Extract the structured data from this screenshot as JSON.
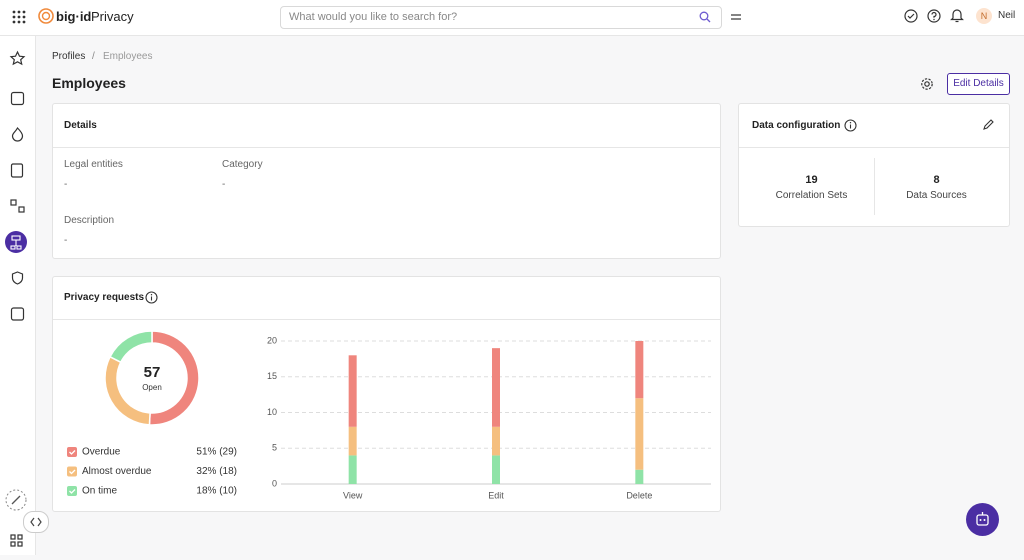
{
  "header": {
    "logo": "big·id",
    "app": "Privacy",
    "search_placeholder": "What would you like to search for?",
    "user_initial": "N",
    "user_name": "Neil"
  },
  "breadcrumb": [
    "Profiles",
    "/",
    "Employees"
  ],
  "title": "Employees",
  "edit_button": "Edit Details",
  "details": {
    "title": "Details",
    "fields": [
      {
        "label": "Legal entities",
        "value": "-"
      },
      {
        "label": "Category",
        "value": "-"
      },
      {
        "label": "Description",
        "value": "-"
      }
    ]
  },
  "data_configuration": {
    "title": "Data configuration",
    "items": [
      {
        "value": "19",
        "label": "Correlation Sets"
      },
      {
        "value": "8",
        "label": "Data Sources"
      }
    ]
  },
  "privacy_requests": {
    "title": "Privacy requests"
  },
  "chart_data": [
    {
      "type": "donut",
      "center_value": 57,
      "center_label": "Open",
      "categories": [
        "Overdue",
        "Almost overdue",
        "On time"
      ],
      "values": [
        29,
        18,
        10
      ],
      "value_labels": [
        "51% (29)",
        "32% (18)",
        "18% (10)"
      ],
      "colors": [
        "#ef857d",
        "#f5bf7f",
        "#8fe3a7"
      ]
    },
    {
      "type": "bar",
      "stacked": true,
      "categories": [
        "View",
        "Edit",
        "Delete"
      ],
      "series": [
        {
          "color": "#8fe3a7",
          "values": [
            4,
            4,
            2
          ]
        },
        {
          "color": "#f5bf7f",
          "values": [
            4,
            4,
            10
          ]
        },
        {
          "color": "#ef857d",
          "values": [
            10,
            11,
            8
          ]
        }
      ],
      "ylim": [
        0,
        20
      ],
      "yticks": [
        0,
        5,
        10,
        15,
        20
      ],
      "grid": true
    }
  ]
}
